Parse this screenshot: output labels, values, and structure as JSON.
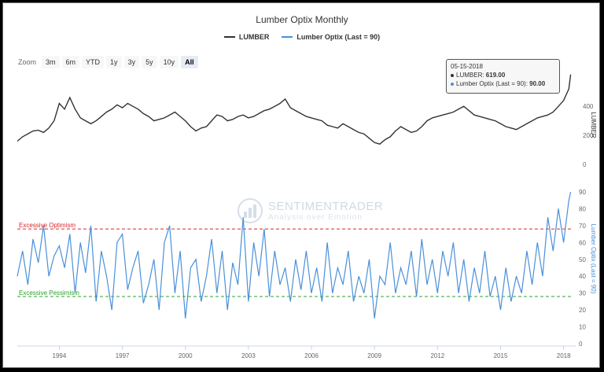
{
  "chart_data": [
    {
      "type": "line",
      "title": "Lumber Optix Monthly",
      "ylabel": "LUMBER",
      "ylim": [
        0,
        650
      ],
      "yticks": [
        0,
        200,
        400
      ],
      "series": [
        {
          "name": "LUMBER",
          "color": "#333333",
          "x": [
            "1992-01",
            "1992-04",
            "1992-07",
            "1992-10",
            "1993-01",
            "1993-04",
            "1993-07",
            "1993-10",
            "1994-01",
            "1994-04",
            "1994-07",
            "1994-10",
            "1995-01",
            "1995-04",
            "1995-07",
            "1995-10",
            "1996-01",
            "1996-04",
            "1996-07",
            "1996-10",
            "1997-01",
            "1997-04",
            "1997-07",
            "1997-10",
            "1998-01",
            "1998-04",
            "1998-07",
            "1998-10",
            "1999-01",
            "1999-04",
            "1999-07",
            "1999-10",
            "2000-01",
            "2000-04",
            "2000-07",
            "2000-10",
            "2001-01",
            "2001-04",
            "2001-07",
            "2001-10",
            "2002-01",
            "2002-04",
            "2002-07",
            "2002-10",
            "2003-01",
            "2003-04",
            "2003-07",
            "2003-10",
            "2004-01",
            "2004-04",
            "2004-07",
            "2004-10",
            "2005-01",
            "2005-04",
            "2005-07",
            "2005-10",
            "2006-01",
            "2006-04",
            "2006-07",
            "2006-10",
            "2007-01",
            "2007-04",
            "2007-07",
            "2007-10",
            "2008-01",
            "2008-04",
            "2008-07",
            "2008-10",
            "2009-01",
            "2009-04",
            "2009-07",
            "2009-10",
            "2010-01",
            "2010-04",
            "2010-07",
            "2010-10",
            "2011-01",
            "2011-04",
            "2011-07",
            "2011-10",
            "2012-01",
            "2012-04",
            "2012-07",
            "2012-10",
            "2013-01",
            "2013-04",
            "2013-07",
            "2013-10",
            "2014-01",
            "2014-04",
            "2014-07",
            "2014-10",
            "2015-01",
            "2015-04",
            "2015-07",
            "2015-10",
            "2016-01",
            "2016-04",
            "2016-07",
            "2016-10",
            "2017-01",
            "2017-04",
            "2017-07",
            "2017-10",
            "2018-01",
            "2018-04",
            "2018-05"
          ],
          "values": [
            160,
            190,
            210,
            230,
            235,
            220,
            250,
            300,
            420,
            380,
            460,
            380,
            320,
            300,
            280,
            300,
            330,
            360,
            380,
            410,
            390,
            420,
            400,
            380,
            350,
            330,
            300,
            310,
            320,
            340,
            360,
            330,
            300,
            260,
            230,
            250,
            260,
            300,
            340,
            330,
            300,
            310,
            330,
            340,
            320,
            330,
            350,
            370,
            380,
            400,
            420,
            450,
            390,
            370,
            350,
            330,
            320,
            310,
            300,
            270,
            260,
            250,
            280,
            260,
            240,
            220,
            210,
            180,
            150,
            140,
            170,
            190,
            230,
            260,
            240,
            220,
            230,
            260,
            300,
            320,
            330,
            340,
            350,
            360,
            380,
            400,
            370,
            340,
            330,
            320,
            310,
            300,
            280,
            260,
            250,
            240,
            260,
            280,
            300,
            320,
            330,
            340,
            360,
            400,
            440,
            520,
            619
          ]
        },
        {
          "name": "Lumber Optix (Last = 90)",
          "color": "#4a90d9",
          "ylabel": "Lumber Optix (Last = 90)",
          "ylim": [
            0,
            90
          ],
          "yticks": [
            0,
            10,
            20,
            30,
            40,
            50,
            60,
            70,
            80,
            90
          ],
          "x": [
            "1992-01",
            "1992-04",
            "1992-07",
            "1992-10",
            "1993-01",
            "1993-04",
            "1993-07",
            "1993-10",
            "1994-01",
            "1994-04",
            "1994-07",
            "1994-10",
            "1995-01",
            "1995-04",
            "1995-07",
            "1995-10",
            "1996-01",
            "1996-04",
            "1996-07",
            "1996-10",
            "1997-01",
            "1997-04",
            "1997-07",
            "1997-10",
            "1998-01",
            "1998-04",
            "1998-07",
            "1998-10",
            "1999-01",
            "1999-04",
            "1999-07",
            "1999-10",
            "2000-01",
            "2000-04",
            "2000-07",
            "2000-10",
            "2001-01",
            "2001-04",
            "2001-07",
            "2001-10",
            "2002-01",
            "2002-04",
            "2002-07",
            "2002-10",
            "2003-01",
            "2003-04",
            "2003-07",
            "2003-10",
            "2004-01",
            "2004-04",
            "2004-07",
            "2004-10",
            "2005-01",
            "2005-04",
            "2005-07",
            "2005-10",
            "2006-01",
            "2006-04",
            "2006-07",
            "2006-10",
            "2007-01",
            "2007-04",
            "2007-07",
            "2007-10",
            "2008-01",
            "2008-04",
            "2008-07",
            "2008-10",
            "2009-01",
            "2009-04",
            "2009-07",
            "2009-10",
            "2010-01",
            "2010-04",
            "2010-07",
            "2010-10",
            "2011-01",
            "2011-04",
            "2011-07",
            "2011-10",
            "2012-01",
            "2012-04",
            "2012-07",
            "2012-10",
            "2013-01",
            "2013-04",
            "2013-07",
            "2013-10",
            "2014-01",
            "2014-04",
            "2014-07",
            "2014-10",
            "2015-01",
            "2015-04",
            "2015-07",
            "2015-10",
            "2016-01",
            "2016-04",
            "2016-07",
            "2016-10",
            "2017-01",
            "2017-04",
            "2017-07",
            "2017-10",
            "2018-01",
            "2018-04",
            "2018-05"
          ],
          "values": [
            40,
            55,
            35,
            62,
            48,
            70,
            40,
            52,
            58,
            45,
            65,
            30,
            60,
            42,
            70,
            25,
            55,
            40,
            20,
            60,
            65,
            32,
            45,
            55,
            24,
            35,
            50,
            20,
            60,
            70,
            30,
            55,
            15,
            45,
            50,
            25,
            40,
            62,
            30,
            55,
            20,
            48,
            35,
            75,
            25,
            60,
            40,
            68,
            28,
            55,
            35,
            45,
            25,
            50,
            32,
            55,
            30,
            45,
            25,
            60,
            30,
            45,
            35,
            55,
            25,
            40,
            30,
            50,
            15,
            40,
            35,
            60,
            30,
            45,
            35,
            55,
            28,
            62,
            35,
            50,
            30,
            55,
            40,
            60,
            30,
            50,
            25,
            45,
            30,
            55,
            28,
            40,
            20,
            45,
            25,
            40,
            30,
            55,
            35,
            60,
            40,
            75,
            55,
            80,
            60,
            85,
            90
          ]
        }
      ],
      "x_tick_labels": [
        "1994",
        "1997",
        "2000",
        "2003",
        "2006",
        "2009",
        "2012",
        "2015",
        "2018"
      ],
      "reference_lines": [
        {
          "label": "Excessive Optimism",
          "value": 68,
          "color": "#d62728"
        },
        {
          "label": "Excessive Pessimism",
          "value": 28,
          "color": "#2ca02c"
        }
      ],
      "legend_position": "top-center",
      "grid": false
    }
  ],
  "legend": [
    {
      "label": "LUMBER",
      "color": "#333333"
    },
    {
      "label": "Lumber Optix (Last = 90)",
      "color": "#4a90d9"
    }
  ],
  "zoom": {
    "label": "Zoom",
    "buttons": [
      "3m",
      "6m",
      "YTD",
      "1y",
      "3y",
      "5y",
      "10y",
      "All"
    ],
    "active": "All"
  },
  "tooltip": {
    "date": "05-15-2018",
    "lumber_label": "LUMBER:",
    "lumber_value": "619.00",
    "optix_label": "Lumber Optix (Last = 90):",
    "optix_value": "90.00"
  },
  "watermark": {
    "line1": "SENTIMENTRADER",
    "line2": "Analysis over Emotion"
  }
}
